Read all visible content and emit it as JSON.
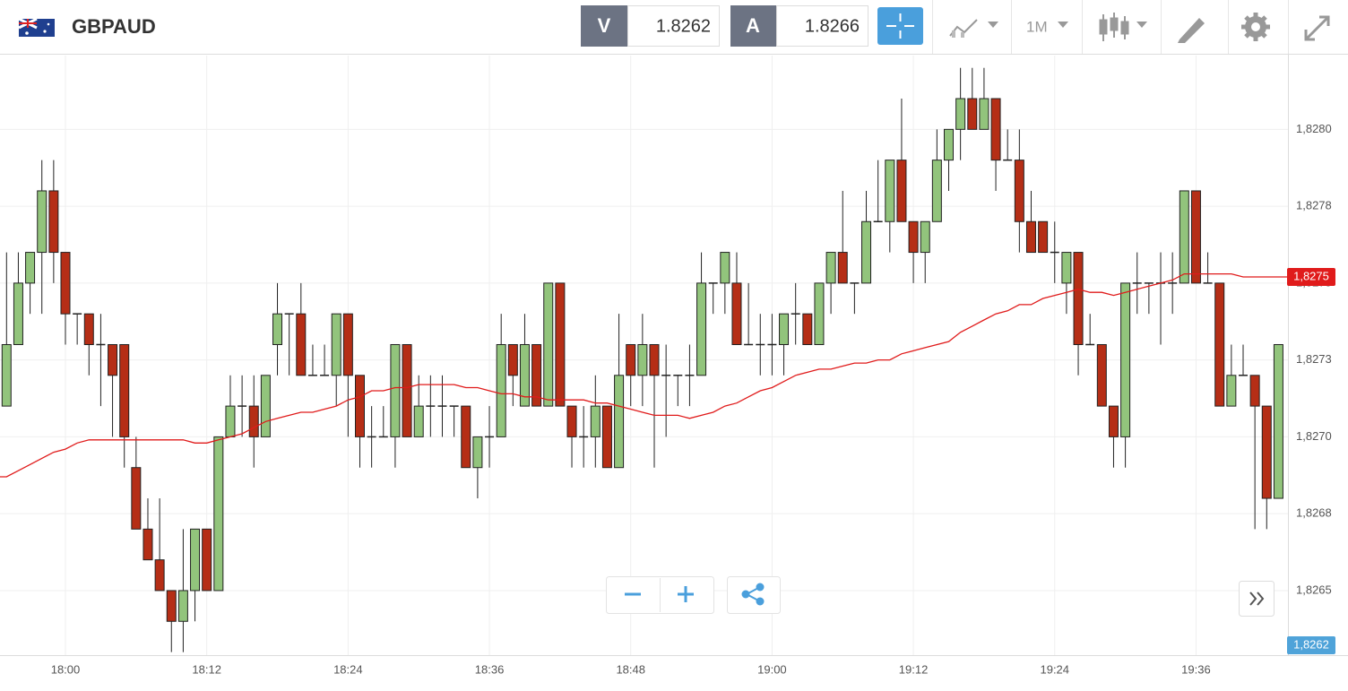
{
  "header": {
    "symbol": "GBPAUD",
    "bid_label": "V",
    "bid": "1.8262",
    "ask_label": "A",
    "ask": "1.8266",
    "timeframe": "1M"
  },
  "chart_data": {
    "type": "candlestick",
    "categories": [
      null,
      null,
      null,
      null,
      null,
      "18:00",
      null,
      null,
      null,
      null,
      null,
      null,
      null,
      null,
      null,
      null,
      null,
      "18:12",
      null,
      null,
      null,
      null,
      null,
      null,
      null,
      null,
      null,
      null,
      null,
      "18:24",
      null,
      null,
      null,
      null,
      null,
      null,
      null,
      null,
      null,
      null,
      null,
      "18:36",
      null,
      null,
      null,
      null,
      null,
      null,
      null,
      null,
      null,
      null,
      null,
      "18:48",
      null,
      null,
      null,
      null,
      null,
      null,
      null,
      null,
      null,
      null,
      null,
      "19:00",
      null,
      null,
      null,
      null,
      null,
      null,
      null,
      null,
      null,
      null,
      null,
      "19:12",
      null,
      null,
      null,
      null,
      null,
      null,
      null,
      null,
      null,
      null,
      null,
      "19:24",
      null,
      null,
      null,
      null,
      null,
      null,
      null,
      null,
      null,
      null,
      null,
      "19:36",
      null,
      null,
      null,
      null,
      null,
      null,
      null
    ],
    "open": [
      1.8271,
      1.8273,
      1.8275,
      1.8276,
      1.8278,
      1.8276,
      1.8274,
      1.8274,
      1.8273,
      1.8273,
      1.8273,
      1.8269,
      1.8267,
      1.8266,
      1.8265,
      1.8264,
      1.8265,
      1.8267,
      1.8265,
      1.827,
      1.8271,
      1.8271,
      1.827,
      1.8273,
      1.8274,
      1.8274,
      1.8272,
      1.8272,
      1.8272,
      1.8274,
      1.8272,
      1.827,
      1.827,
      1.827,
      1.8273,
      1.827,
      1.8271,
      1.8271,
      1.8271,
      1.8271,
      1.8269,
      1.827,
      1.827,
      1.8273,
      1.8271,
      1.8273,
      1.8271,
      1.8275,
      1.8271,
      1.827,
      1.827,
      1.8271,
      1.8269,
      1.8273,
      1.8272,
      1.8273,
      1.8272,
      1.8272,
      1.8272,
      1.8272,
      1.8275,
      1.8275,
      1.8275,
      1.8273,
      1.8273,
      1.8273,
      1.8273,
      1.8274,
      1.8274,
      1.8273,
      1.8275,
      1.8276,
      1.8275,
      1.8275,
      1.8277,
      1.8277,
      1.8279,
      1.8277,
      1.8276,
      1.8277,
      1.8279,
      1.828,
      1.8281,
      1.828,
      1.8281,
      1.8279,
      1.8279,
      1.8277,
      1.8277,
      1.8276,
      1.8275,
      1.8276,
      1.8273,
      1.8273,
      1.8271,
      1.827,
      1.8275,
      1.8275,
      1.8275,
      1.8275,
      1.8275,
      1.8278,
      1.8275,
      1.8275,
      1.8271,
      1.8272,
      1.8272,
      1.8271,
      1.8268
    ],
    "high": [
      1.8276,
      1.8276,
      1.8276,
      1.8279,
      1.8279,
      1.8276,
      1.8274,
      1.8274,
      1.8274,
      1.8273,
      1.8273,
      1.827,
      1.8268,
      1.8268,
      1.8265,
      1.8267,
      1.8267,
      1.8267,
      1.827,
      1.8272,
      1.8272,
      1.8272,
      1.8272,
      1.8275,
      1.8274,
      1.8275,
      1.8273,
      1.8273,
      1.8274,
      1.8274,
      1.8272,
      1.8271,
      1.8271,
      1.8273,
      1.8273,
      1.8272,
      1.8272,
      1.8272,
      1.8271,
      1.8271,
      1.827,
      1.8271,
      1.8274,
      1.8273,
      1.8274,
      1.8273,
      1.8275,
      1.8275,
      1.8271,
      1.8271,
      1.8272,
      1.8271,
      1.8274,
      1.8273,
      1.8274,
      1.8273,
      1.8273,
      1.8272,
      1.8273,
      1.8276,
      1.8275,
      1.8276,
      1.8276,
      1.8275,
      1.8274,
      1.8274,
      1.8274,
      1.8275,
      1.8274,
      1.8275,
      1.8276,
      1.8278,
      1.8275,
      1.8278,
      1.8279,
      1.8279,
      1.8281,
      1.8277,
      1.8277,
      1.828,
      1.828,
      1.8282,
      1.8282,
      1.8282,
      1.8281,
      1.828,
      1.828,
      1.8278,
      1.8277,
      1.8277,
      1.8276,
      1.8276,
      1.8274,
      1.8273,
      1.8271,
      1.8275,
      1.8276,
      1.8275,
      1.8276,
      1.8276,
      1.8278,
      1.8278,
      1.8276,
      1.8275,
      1.8273,
      1.8273,
      1.8272,
      1.8271,
      1.8273
    ],
    "low": [
      1.8271,
      1.8273,
      1.8274,
      1.8274,
      1.8275,
      1.8273,
      1.8273,
      1.8272,
      1.8271,
      1.827,
      1.8269,
      1.8267,
      1.8266,
      1.8265,
      1.8263,
      1.8263,
      1.8264,
      1.8265,
      1.8265,
      1.827,
      1.827,
      1.8269,
      1.827,
      1.8272,
      1.8272,
      1.8272,
      1.8272,
      1.8272,
      1.8271,
      1.827,
      1.8269,
      1.8269,
      1.827,
      1.8269,
      1.827,
      1.827,
      1.827,
      1.827,
      1.827,
      1.8269,
      1.8268,
      1.8269,
      1.827,
      1.8271,
      1.8271,
      1.8271,
      1.8271,
      1.8271,
      1.8269,
      1.8269,
      1.8269,
      1.8269,
      1.8269,
      1.8271,
      1.8271,
      1.8269,
      1.827,
      1.8271,
      1.8271,
      1.8272,
      1.8274,
      1.8274,
      1.8273,
      1.8273,
      1.8272,
      1.8272,
      1.8272,
      1.8273,
      1.8273,
      1.8273,
      1.8274,
      1.8275,
      1.8274,
      1.8275,
      1.8277,
      1.8276,
      1.8277,
      1.8275,
      1.8275,
      1.8277,
      1.8278,
      1.8279,
      1.828,
      1.828,
      1.8278,
      1.8279,
      1.8276,
      1.8276,
      1.8276,
      1.8275,
      1.8274,
      1.8272,
      1.8273,
      1.8271,
      1.8269,
      1.8269,
      1.8274,
      1.8274,
      1.8273,
      1.8274,
      1.8275,
      1.8275,
      1.8275,
      1.8271,
      1.8271,
      1.8272,
      1.8267,
      1.8267,
      1.8268
    ],
    "close": [
      1.8273,
      1.8275,
      1.8276,
      1.8278,
      1.8276,
      1.8274,
      1.8274,
      1.8273,
      1.8273,
      1.8272,
      1.827,
      1.8267,
      1.8266,
      1.8265,
      1.8264,
      1.8265,
      1.8267,
      1.8265,
      1.827,
      1.8271,
      1.8271,
      1.827,
      1.8272,
      1.8274,
      1.8274,
      1.8272,
      1.8272,
      1.8272,
      1.8274,
      1.8272,
      1.827,
      1.827,
      1.827,
      1.8273,
      1.827,
      1.8271,
      1.8271,
      1.8271,
      1.8271,
      1.8269,
      1.827,
      1.827,
      1.8273,
      1.8272,
      1.8273,
      1.8271,
      1.8275,
      1.8271,
      1.827,
      1.827,
      1.8271,
      1.8269,
      1.8272,
      1.8272,
      1.8273,
      1.8272,
      1.8272,
      1.8272,
      1.8272,
      1.8275,
      1.8275,
      1.8276,
      1.8273,
      1.8273,
      1.8273,
      1.8273,
      1.8274,
      1.8274,
      1.8273,
      1.8275,
      1.8276,
      1.8275,
      1.8275,
      1.8277,
      1.8277,
      1.8279,
      1.8277,
      1.8276,
      1.8277,
      1.8279,
      1.828,
      1.8281,
      1.828,
      1.8281,
      1.8279,
      1.8279,
      1.8277,
      1.8276,
      1.8276,
      1.8276,
      1.8276,
      1.8273,
      1.8273,
      1.8271,
      1.827,
      1.8275,
      1.8275,
      1.8275,
      1.8275,
      1.8275,
      1.8278,
      1.8275,
      1.8275,
      1.8271,
      1.8272,
      1.8272,
      1.8271,
      1.8268,
      1.8273
    ],
    "up_color": "#92c47c",
    "down_color": "#b52e16",
    "doji_color": "#222",
    "moving_average": {
      "color": "#e01b1b",
      "last_label": "1,8275",
      "values": [
        1.82687,
        1.82689,
        1.82691,
        1.82693,
        1.82695,
        1.82696,
        1.82698,
        1.82699,
        1.82699,
        1.82699,
        1.82699,
        1.82699,
        1.82699,
        1.82699,
        1.82699,
        1.82699,
        1.82698,
        1.82698,
        1.82699,
        1.827,
        1.82701,
        1.82703,
        1.82705,
        1.82706,
        1.82707,
        1.82708,
        1.82708,
        1.82709,
        1.8271,
        1.82712,
        1.82713,
        1.82715,
        1.82715,
        1.82716,
        1.82716,
        1.82717,
        1.82717,
        1.82717,
        1.82717,
        1.82716,
        1.82716,
        1.82715,
        1.82714,
        1.82714,
        1.82713,
        1.82713,
        1.82712,
        1.82712,
        1.82712,
        1.82712,
        1.82711,
        1.82711,
        1.8271,
        1.82709,
        1.82708,
        1.82707,
        1.82707,
        1.82707,
        1.82706,
        1.82707,
        1.82708,
        1.8271,
        1.82711,
        1.82713,
        1.82715,
        1.82716,
        1.82718,
        1.8272,
        1.82721,
        1.82722,
        1.82722,
        1.82723,
        1.82724,
        1.82724,
        1.82725,
        1.82725,
        1.82727,
        1.82728,
        1.82729,
        1.8273,
        1.82731,
        1.82734,
        1.82736,
        1.82738,
        1.8274,
        1.82741,
        1.82743,
        1.82743,
        1.82745,
        1.82746,
        1.82747,
        1.82748,
        1.82747,
        1.82747,
        1.82746,
        1.82747,
        1.82748,
        1.82749,
        1.8275,
        1.82751,
        1.82753,
        1.82753,
        1.82753,
        1.82753,
        1.82753,
        1.82752,
        1.82752,
        1.82752,
        1.82752
      ]
    },
    "bid_tag": {
      "value": 1.8262,
      "label": "1,8262",
      "color": "#4fa3d9"
    },
    "ylim": [
      1.82629,
      1.82824
    ],
    "yticks": [
      {
        "value": 1.828,
        "label": "1,8280"
      },
      {
        "value": 1.82775,
        "label": "1,8278"
      },
      {
        "value": 1.8275,
        "label": "1,8275"
      },
      {
        "value": 1.82725,
        "label": "1,8273"
      },
      {
        "value": 1.827,
        "label": "1,8270"
      },
      {
        "value": 1.82675,
        "label": "1,8268"
      },
      {
        "value": 1.8265,
        "label": "1,8265"
      }
    ],
    "grid": true
  }
}
